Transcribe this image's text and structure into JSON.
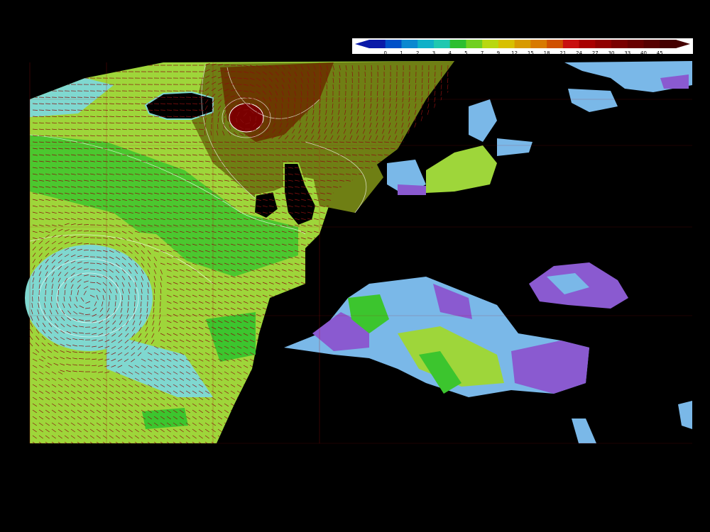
{
  "map": {
    "colors": {
      "ocean_light": "#7fd8d0",
      "ocean_green_light": "#9ed63a",
      "ocean_green": "#3cc52e",
      "ocean_olive": "#6f7f14",
      "ocean_brown": "#6a3a00",
      "ocean_darkred": "#7a0000",
      "sea_purple": "#8a5ad0",
      "sea_lavender": "#7ab8e8",
      "land": "#000000",
      "grid": "#b01010",
      "contour": "#ffffff"
    }
  },
  "legend": {
    "colors": [
      "#0a1aa8",
      "#0050c8",
      "#0a88d0",
      "#10b0c8",
      "#20c8b0",
      "#2dbf30",
      "#70d020",
      "#b8d810",
      "#d8c000",
      "#d89a00",
      "#d87a00",
      "#d05000",
      "#c81010",
      "#a80000",
      "#900000",
      "#7a0000",
      "#680000",
      "#560000",
      "#440000"
    ],
    "ticks": [
      "0",
      "1",
      "2",
      "3",
      "4",
      "5",
      "7",
      "9",
      "12",
      "15",
      "18",
      "21",
      "24",
      "27",
      "30",
      "33",
      "40",
      "45"
    ]
  }
}
